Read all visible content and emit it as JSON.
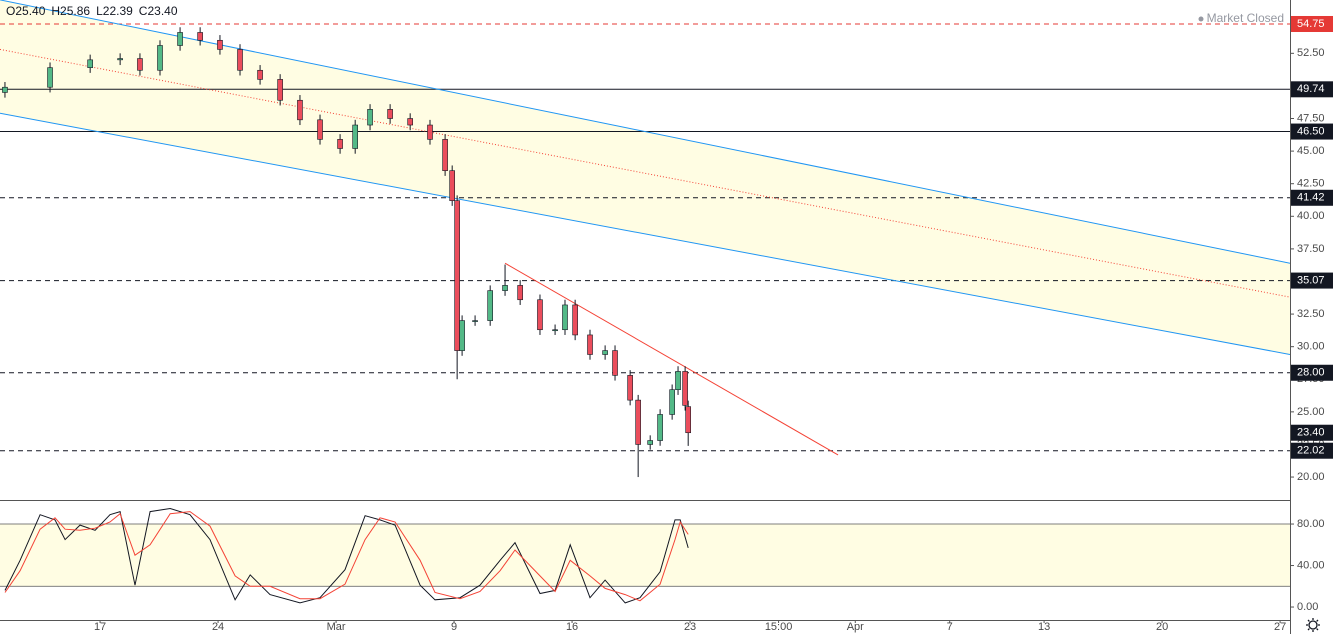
{
  "chart_data": [
    {
      "type": "candlestick",
      "header": [
        {
          "key": "O",
          "value": "25.40"
        },
        {
          "key": "H",
          "value": "25.86"
        },
        {
          "key": "L",
          "value": "22.39"
        },
        {
          "key": "C",
          "value": "23.40"
        }
      ],
      "status": "Market Closed",
      "xlim": [
        -4.24,
        50.42
      ],
      "ylim": [
        18.24,
        56.59
      ],
      "yticks": [
        {
          "value": 20,
          "label": "20.00"
        },
        {
          "value": 22.5,
          "label": "22.50"
        },
        {
          "value": 25,
          "label": "25.00"
        },
        {
          "value": 27.5,
          "label": "27.50"
        },
        {
          "value": 30,
          "label": "30.00"
        },
        {
          "value": 32.5,
          "label": "32.50"
        },
        {
          "value": 35,
          "label": "35.00"
        },
        {
          "value": 37.5,
          "label": "37.50"
        },
        {
          "value": 40,
          "label": "40.00"
        },
        {
          "value": 42.5,
          "label": "42.50"
        },
        {
          "value": 45,
          "label": "45.00"
        },
        {
          "value": 47.5,
          "label": "47.50"
        },
        {
          "value": 50,
          "label": "50.00"
        },
        {
          "value": 52.5,
          "label": "52.50"
        }
      ],
      "x": [
        -4.03,
        -2.12,
        -0.42,
        0.85,
        1.69,
        2.54,
        3.39,
        4.24,
        5.08,
        5.93,
        6.78,
        7.63,
        8.47,
        9.32,
        10.17,
        10.81,
        11.44,
        12.29,
        13.14,
        13.98,
        14.62,
        14.92,
        15.13,
        15.34,
        15.89,
        16.53,
        17.16,
        17.8,
        18.64,
        19.28,
        19.7,
        20.13,
        20.76,
        21.4,
        21.82,
        22.46,
        22.8,
        23.31,
        23.73,
        24.24,
        24.49,
        24.79,
        24.92
      ],
      "open": [
        49.5,
        49.9,
        51.4,
        52.0,
        52.1,
        51.2,
        53.1,
        54.1,
        53.5,
        52.8,
        51.2,
        50.5,
        48.9,
        47.4,
        45.9,
        45.2,
        47.0,
        48.2,
        47.5,
        47.0,
        45.9,
        43.5,
        41.2,
        29.7,
        32.0,
        32.0,
        34.3,
        34.7,
        33.6,
        31.3,
        31.3,
        33.2,
        30.9,
        29.4,
        29.7,
        27.8,
        25.9,
        22.5,
        22.8,
        24.8,
        26.7,
        28.1,
        25.4
      ],
      "high": [
        50.3,
        51.8,
        52.4,
        52.5,
        52.5,
        53.5,
        54.5,
        54.5,
        53.9,
        53.2,
        51.6,
        50.9,
        49.3,
        47.8,
        46.3,
        47.4,
        48.6,
        48.6,
        47.9,
        47.4,
        46.3,
        43.9,
        41.6,
        32.4,
        32.4,
        34.7,
        36.3,
        35.1,
        34.0,
        31.7,
        33.6,
        33.6,
        31.3,
        30.1,
        30.1,
        28.2,
        26.3,
        23.2,
        25.2,
        27.1,
        28.5,
        28.5,
        25.86
      ],
      "low": [
        49.1,
        49.5,
        51.0,
        51.6,
        50.8,
        50.8,
        52.7,
        53.1,
        52.4,
        50.8,
        50.1,
        48.5,
        47.0,
        45.5,
        44.8,
        44.8,
        46.6,
        47.1,
        46.6,
        45.5,
        43.1,
        40.8,
        27.5,
        29.3,
        31.6,
        31.6,
        33.9,
        33.2,
        30.9,
        30.9,
        30.9,
        30.5,
        29.0,
        29.0,
        27.4,
        25.5,
        20.0,
        22.1,
        22.4,
        24.4,
        26.3,
        25.1,
        22.39
      ],
      "close": [
        49.9,
        51.4,
        52.0,
        52.1,
        51.2,
        53.1,
        54.1,
        53.5,
        52.8,
        51.2,
        50.5,
        48.9,
        47.4,
        45.9,
        45.2,
        47.0,
        48.2,
        47.5,
        47.0,
        45.9,
        43.5,
        41.2,
        29.7,
        32.0,
        32.0,
        34.3,
        34.7,
        33.6,
        31.3,
        31.3,
        33.2,
        30.9,
        29.4,
        29.7,
        27.8,
        25.9,
        22.5,
        22.8,
        24.8,
        26.7,
        28.1,
        25.5,
        23.4
      ],
      "up_color": "#53b987",
      "down_color": "#eb4d5c",
      "wick_color": "#131722",
      "channel": {
        "upper": {
          "from": [
            -4.24,
            56.6
          ],
          "to": [
            50.42,
            36.4
          ]
        },
        "lower": {
          "from": [
            -4.24,
            47.9
          ],
          "to": [
            50.42,
            29.4
          ]
        },
        "median": {
          "from": [
            -4.24,
            52.8
          ],
          "to": [
            50.42,
            33.8
          ]
        },
        "color": "#2196f3",
        "median_color": "#f44336",
        "fill": "#fffde3"
      },
      "trendlines": [
        {
          "from": [
            17.16,
            36.4
          ],
          "to": [
            31.27,
            21.7
          ],
          "color": "#f44336"
        }
      ],
      "levels": [
        {
          "value": 54.75,
          "label": "54.75",
          "line": "dashed",
          "color": "#e53935"
        },
        {
          "value": 49.74,
          "label": "49.74",
          "line": "solid",
          "color": "#131722"
        },
        {
          "value": 46.5,
          "label": "46.50",
          "line": "solid",
          "color": "#131722"
        },
        {
          "value": 41.42,
          "label": "41.42",
          "line": "dashed",
          "color": "#131722"
        },
        {
          "value": 35.07,
          "label": "35.07",
          "line": "dashed",
          "color": "#131722"
        },
        {
          "value": 28.0,
          "label": "28.00",
          "line": "dashed",
          "color": "#131722"
        },
        {
          "value": 23.4,
          "label": "23.40",
          "line": "none",
          "color": "#131722"
        },
        {
          "value": 22.02,
          "label": "22.02",
          "line": "dashed",
          "color": "#131722"
        }
      ]
    },
    {
      "type": "line",
      "xlim": [
        -4.24,
        50.42
      ],
      "ylim": [
        -12.5,
        102.2
      ],
      "yticks": [
        {
          "value": 0,
          "label": "0.00"
        },
        {
          "value": 40,
          "label": "40.00"
        },
        {
          "value": 80,
          "label": "80.00"
        }
      ],
      "band": [
        20,
        80
      ],
      "band_fill": "#fffde3",
      "xticks": [
        {
          "value": 0,
          "label": "17"
        },
        {
          "value": 5,
          "label": "24"
        },
        {
          "value": 10,
          "label": "Mar"
        },
        {
          "value": 15,
          "label": "9"
        },
        {
          "value": 20,
          "label": "16"
        },
        {
          "value": 25,
          "label": "23"
        },
        {
          "value": 28.75,
          "label": "15:00"
        },
        {
          "value": 32,
          "label": "Apr"
        },
        {
          "value": 36,
          "label": "7"
        },
        {
          "value": 40,
          "label": "13"
        },
        {
          "value": 45,
          "label": "20"
        },
        {
          "value": 50,
          "label": "27"
        }
      ],
      "x": [
        -4.03,
        -3.39,
        -2.54,
        -1.91,
        -1.48,
        -0.85,
        -0.21,
        0.42,
        0.85,
        1.48,
        2.12,
        2.97,
        3.81,
        4.66,
        5.72,
        6.36,
        7.2,
        8.47,
        9.32,
        10.38,
        11.23,
        11.86,
        12.5,
        13.56,
        14.19,
        15.25,
        16.1,
        16.95,
        17.58,
        18.64,
        19.28,
        19.92,
        20.76,
        21.4,
        22.25,
        22.88,
        23.73,
        24.36,
        24.58,
        24.92
      ],
      "series": [
        {
          "color": "#131722",
          "values": [
            16,
            45,
            89,
            84,
            65,
            79,
            74,
            89,
            92,
            21,
            92,
            95,
            89,
            65,
            7,
            31,
            12,
            4,
            9,
            36,
            88,
            84,
            79,
            21,
            7,
            9,
            21,
            45,
            62,
            13,
            16,
            60,
            9,
            26,
            4,
            9,
            34,
            84,
            84,
            57
          ]
        },
        {
          "color": "#f44336",
          "values": [
            14,
            35,
            75,
            86,
            75,
            74,
            76,
            82,
            90,
            50,
            60,
            90,
            92,
            78,
            30,
            20,
            20,
            8,
            8,
            22,
            65,
            86,
            82,
            45,
            14,
            8,
            15,
            35,
            55,
            30,
            15,
            45,
            30,
            18,
            12,
            6,
            22,
            65,
            82,
            70
          ]
        }
      ]
    }
  ]
}
